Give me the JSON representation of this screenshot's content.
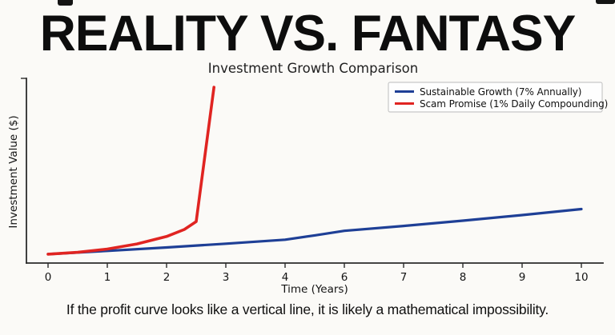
{
  "poster": {
    "title": "REALITY VS. FANTASY",
    "caption": "If the profit curve looks like a vertical line, it is likely a mathematical impossibility."
  },
  "chart_data": {
    "type": "line",
    "title": "Investment Growth Comparison",
    "xlabel": "Time (Years)",
    "ylabel": "Investment Value ($)",
    "x_tick_labels": [
      "0",
      "1",
      "2",
      "3",
      "4",
      "6",
      "7",
      "8",
      "9",
      "10"
    ],
    "y_tick_labels": [],
    "x_range": [
      0,
      10
    ],
    "y_display_range": [
      0.81,
      4.77
    ],
    "grid": false,
    "legend_position": "upper right",
    "series": [
      {
        "name": "Sustainable Growth (7% Annually)",
        "color": "#1e3f96",
        "x": [
          0,
          1,
          2,
          3,
          4,
          5,
          6,
          7,
          8,
          9,
          10
        ],
        "y": [
          1.0,
          1.07,
          1.145,
          1.225,
          1.311,
          1.403,
          1.501,
          1.606,
          1.718,
          1.838,
          1.967
        ]
      },
      {
        "name": "Scam Promise (1% Daily Compounding)",
        "color": "#e02421",
        "x": [
          0,
          0.5,
          1,
          1.5,
          2,
          2.3,
          2.5,
          2.8
        ],
        "y": [
          1.0,
          1.04,
          1.11,
          1.22,
          1.38,
          1.53,
          1.7,
          4.58
        ]
      }
    ]
  }
}
